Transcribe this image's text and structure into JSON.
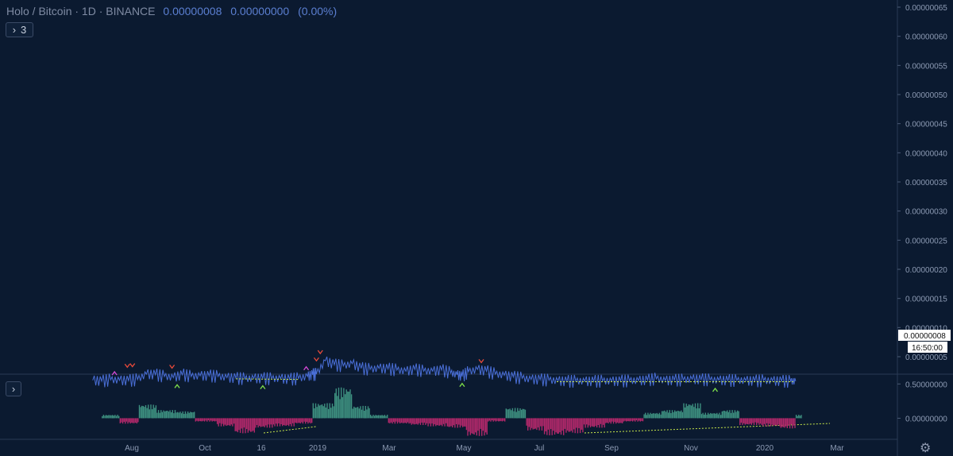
{
  "header": {
    "symbol_text": "Holo / Bitcoin · 1D · BINANCE",
    "last_value": "0.00000008",
    "change_value": "0.00000000",
    "change_pct": "(0.00%)"
  },
  "indicator_toggle": {
    "chevron": "›",
    "count": "3"
  },
  "oscillator_toggle": {
    "chevron": "›"
  },
  "price_tag": "0.00000008",
  "countdown_tag": "16:50:00",
  "colors": {
    "background": "#0b1a30",
    "price_line": "#4a6fd8",
    "bull_hist": "#3d8f7f",
    "bear_hist": "#b0286a",
    "divergence": "#c8e84a",
    "marker_bear": "#e84a3a",
    "marker_bull": "#7ee04a",
    "marker_magenta": "#d84ad8"
  },
  "chart_data": [
    {
      "type": "line",
      "series": [
        {
          "x": [
            "2018-07-27",
            "2018-08-03",
            "2018-08-10",
            "2018-08-17",
            "2018-08-24",
            "2018-08-31",
            "2018-09-07",
            "2018-09-14",
            "2018-09-21",
            "2018-09-28",
            "2018-10-05",
            "2018-10-12",
            "2018-10-19",
            "2018-10-26",
            "2018-11-02",
            "2018-11-09",
            "2018-11-16",
            "2018-11-23",
            "2018-11-30",
            "2018-12-07",
            "2018-12-14",
            "2018-12-21",
            "2018-12-28",
            "2019-01-04",
            "2019-01-11",
            "2019-01-15",
            "2019-01-18",
            "2019-01-25",
            "2019-02-01",
            "2019-02-08",
            "2019-02-15",
            "2019-02-22",
            "2019-03-01",
            "2019-03-08",
            "2019-03-15",
            "2019-03-22",
            "2019-03-29",
            "2019-04-05",
            "2019-04-12",
            "2019-04-19",
            "2019-04-26",
            "2019-05-03",
            "2019-05-08",
            "2019-05-12",
            "2019-05-17",
            "2019-05-24",
            "2019-05-31",
            "2019-06-07",
            "2019-06-14",
            "2019-06-21",
            "2019-06-28",
            "2019-07-05",
            "2019-07-12",
            "2019-07-19",
            "2019-07-26",
            "2019-08-02",
            "2019-08-09",
            "2019-08-16",
            "2019-08-23",
            "2019-08-30",
            "2019-09-06",
            "2019-09-13",
            "2019-09-20",
            "2019-09-27",
            "2019-10-04",
            "2019-10-11",
            "2019-10-18",
            "2019-10-25",
            "2019-11-01",
            "2019-11-08",
            "2019-11-15",
            "2019-11-22",
            "2019-11-29",
            "2019-12-06",
            "2019-12-13",
            "2019-12-20",
            "2019-12-27",
            "2020-01-03",
            "2020-01-10",
            "2020-01-17",
            "2020-01-24",
            "2020-01-28"
          ],
          "y": [
            9.6e-09,
            7.7e-09,
            1.04e-08,
            9.4e-09,
            8.8e-09,
            1.08e-08,
            2e-08,
            1.9e-08,
            1.6e-08,
            1.4e-08,
            1.9e-08,
            1.6e-08,
            1.7e-08,
            1.7e-08,
            1.6e-08,
            1.4e-08,
            1.3e-08,
            1.2e-08,
            1.28e-08,
            1.25e-08,
            1.2e-08,
            1.25e-08,
            1.1e-08,
            1.25e-08,
            1.6e-08,
            1.9e-08,
            2e-08,
            4.3e-08,
            3.6e-08,
            3.4e-08,
            3.8e-08,
            3e-08,
            2.8e-08,
            3e-08,
            2.9e-08,
            2.7e-08,
            2.5e-08,
            2.8e-08,
            2.5e-08,
            2.5e-08,
            2.7e-08,
            2.2e-08,
            1.9e-08,
            1.6e-08,
            2.4e-08,
            2.8e-08,
            2.5e-08,
            2e-08,
            1.8e-08,
            1.5e-08,
            1.3e-08,
            1.1e-08,
            1.05e-08,
            9.5e-09,
            8.5e-09,
            7.5e-09,
            8e-09,
            7.8e-09,
            7.5e-09,
            8.2e-09,
            7.8e-09,
            8e-09,
            8.5e-09,
            9e-09,
            9.5e-09,
            1.2e-08,
            9e-09,
            9.5e-09,
            1e-08,
            1.15e-08,
            1.05e-08,
            1e-08,
            9.5e-09,
            9e-09,
            9.2e-09,
            8.8e-09,
            8.2e-09,
            9e-09,
            8.5e-09,
            7.8e-09,
            7.5e-09,
            8e-09
          ]
        }
      ],
      "ylim": [
        0.0,
        6.5e-08
      ],
      "y_tick_labels": [
        "0.00000005",
        "0.00000010",
        "0.00000015",
        "0.00000020",
        "0.00000025",
        "0.00000030",
        "0.00000035",
        "0.00000040",
        "0.00000045",
        "0.00000050",
        "0.00000055",
        "0.00000060",
        "0.00000065"
      ],
      "x_tick_labels": [
        "Aug",
        "Oct",
        "16",
        "2019",
        "Mar",
        "May",
        "Jul",
        "Sep",
        "Nov",
        "2020",
        "Mar"
      ],
      "markers_bear": [
        [
          "2018-08-23",
          2.1e-08
        ],
        [
          "2018-08-27",
          2.2e-08
        ],
        [
          "2018-09-27",
          1.95e-08
        ],
        [
          "2019-01-18",
          3.2e-08
        ],
        [
          "2019-01-21",
          4.45e-08
        ],
        [
          "2019-05-27",
          2.9e-08
        ]
      ],
      "markers_bull": [
        [
          "2018-10-01",
          1.28e-08
        ],
        [
          "2018-12-07",
          1.1e-08
        ],
        [
          "2019-05-12",
          1.5e-08
        ],
        [
          "2019-11-26",
          6.5e-09
        ]
      ],
      "markers_magenta": [
        [
          "2018-08-13",
          1.05e-08
        ],
        [
          "2019-01-10",
          1.9e-08
        ]
      ],
      "divergence_lines": [
        [
          [
            "2018-11-16",
            1.2e-08
          ],
          [
            "2019-01-04",
            1.1e-08
          ]
        ],
        [
          [
            "2019-07-25",
            7.1e-09
          ],
          [
            "2020-01-26",
            7.1e-09
          ]
        ]
      ],
      "grid": false
    },
    {
      "type": "bar",
      "name": "",
      "ylim": [
        -0.25,
        0.55
      ],
      "y_tick_labels": [
        "0.50000000",
        "0.00000000"
      ],
      "x": [
        "2018-08-03",
        "2018-08-17",
        "2018-09-01",
        "2018-09-15",
        "2018-10-01",
        "2018-10-15",
        "2018-11-01",
        "2018-11-15",
        "2018-12-01",
        "2018-12-15",
        "2019-01-01",
        "2019-01-15",
        "2019-02-01",
        "2019-02-15",
        "2019-03-01",
        "2019-03-15",
        "2019-04-01",
        "2019-04-15",
        "2019-05-01",
        "2019-05-15",
        "2019-06-01",
        "2019-06-15",
        "2019-07-01",
        "2019-07-15",
        "2019-08-01",
        "2019-08-15",
        "2019-09-01",
        "2019-09-15",
        "2019-10-01",
        "2019-10-15",
        "2019-11-01",
        "2019-11-15",
        "2019-12-01",
        "2019-12-15",
        "2020-01-01",
        "2020-01-15",
        "2020-01-28"
      ],
      "values": [
        0.05,
        -0.08,
        0.2,
        0.12,
        0.1,
        -0.05,
        -0.12,
        -0.22,
        -0.14,
        -0.12,
        -0.08,
        0.22,
        0.45,
        0.18,
        0.05,
        -0.08,
        -0.1,
        -0.12,
        -0.14,
        -0.26,
        -0.05,
        0.15,
        -0.18,
        -0.25,
        -0.22,
        -0.14,
        -0.08,
        -0.05,
        0.08,
        0.12,
        0.22,
        0.08,
        0.12,
        -0.1,
        -0.12,
        -0.15,
        0.05
      ]
    }
  ]
}
